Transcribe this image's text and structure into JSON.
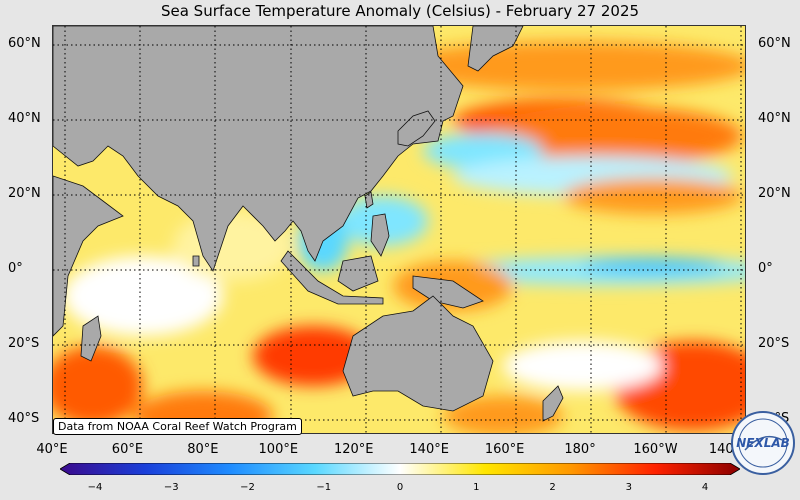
{
  "title": "Sea Surface Temperature Anomaly (Celsius) - February 27 2025",
  "credit": "Data from NOAA Coral Reef Watch Program",
  "lat_labels": [
    "60°N",
    "40°N",
    "20°N",
    "0°",
    "20°S",
    "40°S"
  ],
  "lat_values": [
    60,
    40,
    20,
    0,
    -20,
    -40
  ],
  "lon_labels": [
    "40°E",
    "60°E",
    "80°E",
    "100°E",
    "120°E",
    "140°E",
    "160°E",
    "180°",
    "160°W",
    "140°W"
  ],
  "lon_values": [
    40,
    60,
    80,
    100,
    120,
    140,
    160,
    180,
    200,
    220
  ],
  "map_extent": {
    "lon": [
      40,
      224
    ],
    "lat": [
      -44,
      65
    ]
  },
  "colorbar": {
    "min": -4,
    "max": 4,
    "ticks": [
      "−4",
      "−3",
      "−2",
      "−1",
      "0",
      "1",
      "2",
      "3",
      "4"
    ],
    "tick_values": [
      -4,
      -3,
      -2,
      -1,
      0,
      1,
      2,
      3,
      4
    ],
    "colors": [
      "#3b0a8c",
      "#1a3fd9",
      "#1f8cff",
      "#5ad8ff",
      "#ffffff",
      "#ffe600",
      "#ff9900",
      "#ff2200",
      "#8b0000"
    ]
  },
  "colors": {
    "land": "#a9a9a9",
    "ocean_base": "#fde96a",
    "warm": "#ff6a00",
    "hot": "#dd1a00",
    "cool": "#7fe6ff",
    "cold": "#2fb0ff"
  },
  "logo_text": "NEXLAB"
}
